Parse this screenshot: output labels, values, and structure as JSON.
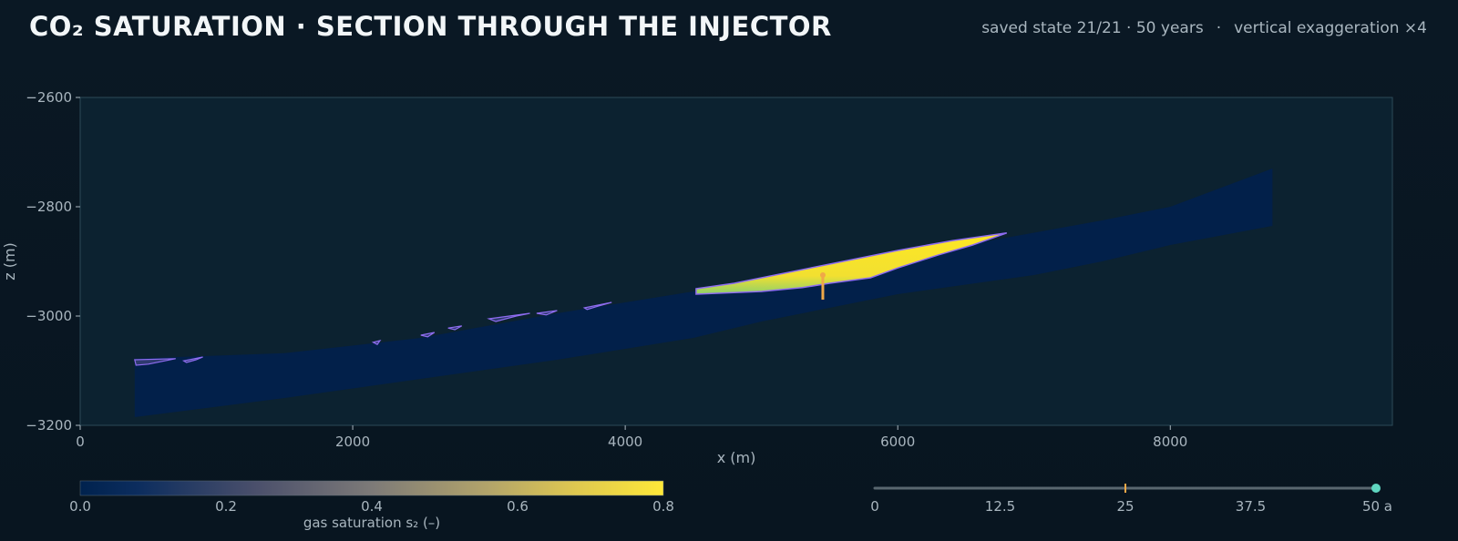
{
  "header": {
    "title": "CO₂ SATURATION · SECTION THROUGH THE INJECTOR",
    "state_text": "saved state 21/21 · 50 years",
    "separator": "·",
    "exaggeration_text": "vertical exaggeration ×4"
  },
  "chart_data": {
    "type": "heatmap",
    "xlabel": "x (m)",
    "ylabel": "z (m)",
    "xlim": [
      0,
      9630
    ],
    "ylim": [
      -3200,
      -2600
    ],
    "x_ticks": [
      0,
      2000,
      4000,
      6000,
      8000
    ],
    "y_ticks": [
      -2600,
      -2800,
      -3000,
      -3200
    ],
    "formation": {
      "top": [
        [
          400,
          -3078
        ],
        [
          1500,
          -3068
        ],
        [
          2500,
          -3040
        ],
        [
          3500,
          -2995
        ],
        [
          4500,
          -2955
        ],
        [
          5500,
          -2920
        ],
        [
          6500,
          -2870
        ],
        [
          7500,
          -2825
        ],
        [
          8000,
          -2800
        ],
        [
          8750,
          -2730
        ]
      ],
      "bottom": [
        [
          8750,
          -2835
        ],
        [
          8000,
          -2870
        ],
        [
          7500,
          -2900
        ],
        [
          7000,
          -2925
        ],
        [
          6000,
          -2960
        ],
        [
          5000,
          -3010
        ],
        [
          4500,
          -3040
        ],
        [
          3500,
          -3080
        ],
        [
          2500,
          -3115
        ],
        [
          1500,
          -3150
        ],
        [
          400,
          -3185
        ]
      ]
    },
    "plume": {
      "top": [
        [
          4520,
          -2950
        ],
        [
          4800,
          -2940
        ],
        [
          5100,
          -2925
        ],
        [
          5500,
          -2905
        ],
        [
          6000,
          -2880
        ],
        [
          6400,
          -2862
        ],
        [
          6800,
          -2848
        ]
      ],
      "bottom": [
        [
          6800,
          -2848
        ],
        [
          6550,
          -2870
        ],
        [
          6300,
          -2888
        ],
        [
          6000,
          -2912
        ],
        [
          5800,
          -2930
        ],
        [
          5500,
          -2940
        ],
        [
          5300,
          -2948
        ],
        [
          5000,
          -2955
        ],
        [
          4520,
          -2960
        ]
      ]
    },
    "patches": [
      [
        [
          400,
          -3080
        ],
        [
          700,
          -3078
        ],
        [
          500,
          -3088
        ],
        [
          410,
          -3090
        ]
      ],
      [
        [
          760,
          -3082
        ],
        [
          900,
          -3075
        ],
        [
          850,
          -3080
        ],
        [
          780,
          -3085
        ]
      ],
      [
        [
          2150,
          -3048
        ],
        [
          2200,
          -3045
        ],
        [
          2180,
          -3052
        ]
      ],
      [
        [
          2500,
          -3035
        ],
        [
          2600,
          -3030
        ],
        [
          2550,
          -3038
        ]
      ],
      [
        [
          2700,
          -3022
        ],
        [
          2800,
          -3018
        ],
        [
          2750,
          -3025
        ]
      ],
      [
        [
          3000,
          -3005
        ],
        [
          3300,
          -2995
        ],
        [
          3200,
          -3000
        ],
        [
          3050,
          -3010
        ]
      ],
      [
        [
          3350,
          -2995
        ],
        [
          3500,
          -2990
        ],
        [
          3420,
          -2998
        ]
      ],
      [
        [
          3700,
          -2985
        ],
        [
          3900,
          -2975
        ],
        [
          3800,
          -2982
        ],
        [
          3720,
          -2988
        ]
      ]
    ],
    "injector": {
      "x": 5450,
      "z_top": -2925,
      "z_bottom": -2970
    },
    "colorbar": {
      "label": "gas saturation  s₂  (–)",
      "ticks": [
        "0.0",
        "0.2",
        "0.4",
        "0.6",
        "0.8"
      ],
      "range": [
        0,
        0.8
      ]
    },
    "timeline": {
      "ticks": [
        "0",
        "12.5",
        "25",
        "37.5",
        "50 a"
      ],
      "range": [
        0,
        50
      ],
      "current": 50,
      "marker": 25
    },
    "colors": {
      "plot_bg": "#0c2230",
      "formation": "#02204a",
      "plume_fill": "#fde725",
      "plume_edge": "#5ec9a8",
      "patch_outline": "#8e6cf0",
      "injector": "#f0a848",
      "timeline_current": "#5fd6c0"
    }
  }
}
